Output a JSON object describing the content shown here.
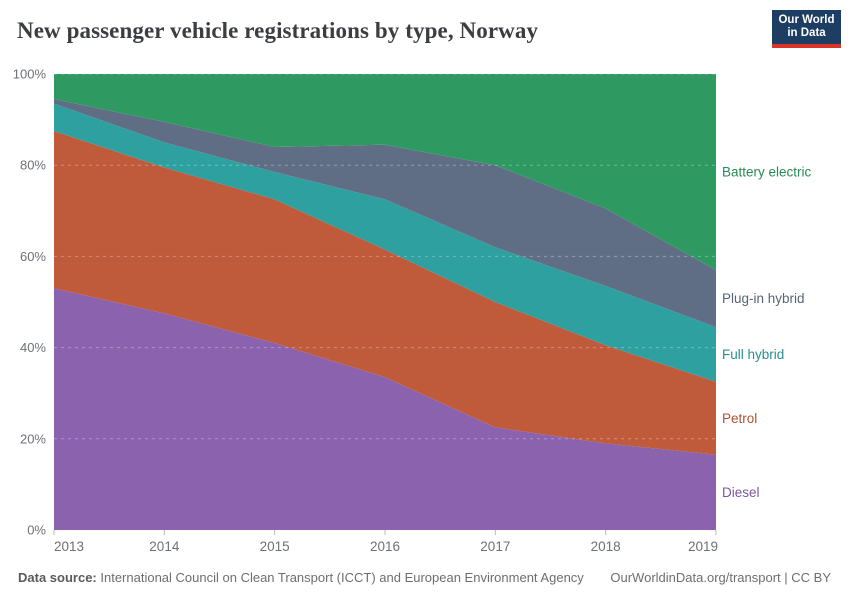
{
  "header": {
    "title": "New passenger vehicle registrations by type, Norway",
    "logo": {
      "line1": "Our World",
      "line2": "in Data",
      "bg_color": "#1d3d63",
      "bar_color": "#d8352b"
    }
  },
  "footer": {
    "source_label": "Data source:",
    "source_text": " International Council on Clean Transport (ICCT) and European Environment Agency",
    "credit": "OurWorldinData.org/transport | CC BY"
  },
  "chart_data": {
    "type": "area",
    "stacked": true,
    "unit": "%",
    "title": "New passenger vehicle registrations by type, Norway",
    "x": [
      2013,
      2014,
      2015,
      2016,
      2017,
      2018,
      2019
    ],
    "series": [
      {
        "name": "Diesel",
        "color": "#8a62ad",
        "label_color": "#7c57a0",
        "values": [
          53,
          47.5,
          41,
          33.5,
          22.5,
          19,
          16.5
        ]
      },
      {
        "name": "Petrol",
        "color": "#bf5b3b",
        "label_color": "#b05134",
        "values": [
          34.5,
          32,
          31.5,
          28,
          27.5,
          21.5,
          16
        ]
      },
      {
        "name": "Full hybrid",
        "color": "#2ea0a0",
        "label_color": "#27908f",
        "values": [
          6,
          5.5,
          6,
          11,
          12,
          13,
          12
        ]
      },
      {
        "name": "Plug-in hybrid",
        "color": "#606e85",
        "label_color": "#57647a",
        "values": [
          1,
          4.5,
          5.5,
          12,
          18,
          17,
          12.5
        ]
      },
      {
        "name": "Battery electric",
        "color": "#2e9a62",
        "label_color": "#2a8a57",
        "values": [
          5.5,
          10.5,
          16,
          15.5,
          20,
          29.5,
          43
        ]
      }
    ],
    "ylim": [
      0,
      100
    ],
    "yticks": [
      0,
      20,
      40,
      60,
      80,
      100
    ],
    "ytick_labels": [
      "0%",
      "20%",
      "40%",
      "60%",
      "80%",
      "100%"
    ],
    "xtick_labels": [
      "2013",
      "2014",
      "2015",
      "2016",
      "2017",
      "2018",
      "2019"
    ],
    "grid": "dashed-horizontal",
    "legend_position": "right",
    "axis_text_color": "#6e7079",
    "tick_mark_color": "#b8b8b8"
  }
}
